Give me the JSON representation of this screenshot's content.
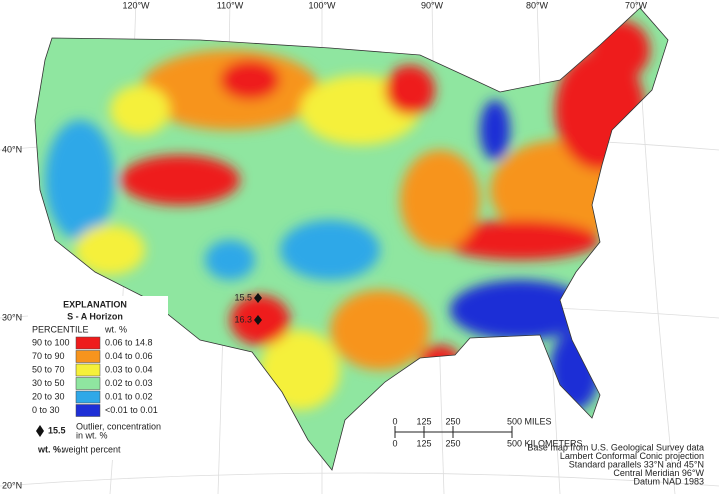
{
  "map": {
    "longitude_labels": [
      "120°W",
      "110°W",
      "100°W",
      "90°W",
      "80°W",
      "70°W"
    ],
    "latitude_labels": [
      "40°N",
      "30°N",
      "20°N"
    ],
    "legend": {
      "title": "EXPLANATION",
      "subtitle": "S - A Horizon",
      "percentile_header": "PERCENTILE",
      "unit_header": "wt. %",
      "rows": [
        {
          "percentile": "90 to 100",
          "range": "0.06 to 14.8",
          "color": "#ee1c1c"
        },
        {
          "percentile": "70 to 90",
          "range": "0.04 to 0.06",
          "color": "#f7941d"
        },
        {
          "percentile": "50 to 70",
          "range": "0.03 to 0.04",
          "color": "#f5f03a"
        },
        {
          "percentile": "30 to 50",
          "range": "0.02 to 0.03",
          "color": "#8fe6a0"
        },
        {
          "percentile": "20 to 30",
          "range": "0.01 to 0.02",
          "color": "#2fa8e8"
        },
        {
          "percentile": "0 to 30",
          "range": "<0.01 to 0.01",
          "color": "#1e2fd6"
        }
      ],
      "outlier_symbol_label": "15.5",
      "outlier_text": [
        "Outlier, concentration",
        "in wt. %"
      ],
      "note_key": "wt. %:",
      "note_text": "weight percent"
    },
    "outliers": [
      "15.5",
      "16.3"
    ],
    "scale": {
      "miles": [
        "0",
        "125",
        "250",
        "500 MILES"
      ],
      "kilometers": [
        "0",
        "125",
        "250",
        "500 KILOMETERS"
      ]
    },
    "credits": [
      "Base map from U.S. Geological Survey data",
      "Lambert Conformal Conic projection",
      "Standard parallels 33°N and 45°N",
      "Central Meridian 96°W",
      "Datum NAD 1983"
    ]
  }
}
